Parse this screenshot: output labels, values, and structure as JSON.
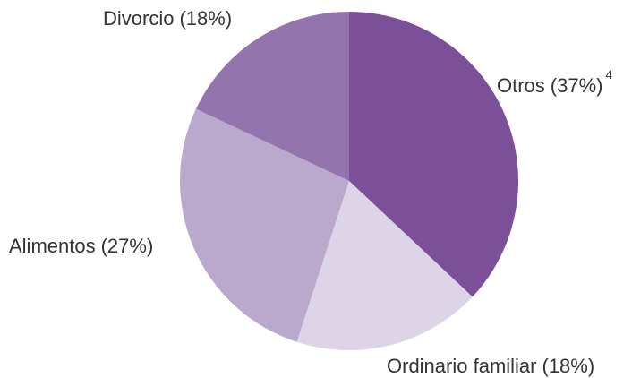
{
  "chart_data": {
    "type": "pie",
    "categories": [
      "Otros",
      "Ordinario familiar",
      "Alimentos",
      "Divorcio"
    ],
    "values": [
      37,
      18,
      27,
      18
    ],
    "value_labels": [
      "(37%)",
      "(18%)",
      "(27%)",
      "(18%)"
    ],
    "colors": [
      "#7b5098",
      "#ddd4e8",
      "#bba8cd",
      "#9374ad"
    ],
    "annotation": "4"
  }
}
